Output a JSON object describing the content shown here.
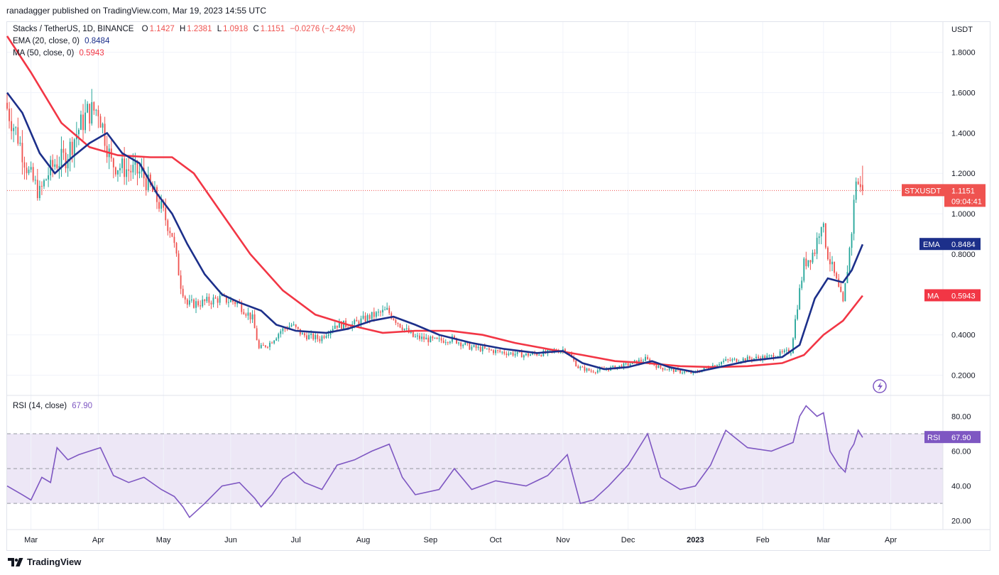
{
  "publisher_line": "ranadagger published on TradingView.com, Mar 19, 2023 14:55 UTC",
  "legend": {
    "symbol": "Stacks / TetherUS, 1D, BINANCE",
    "o_label": "O",
    "o": "1.1427",
    "h_label": "H",
    "h": "1.2381",
    "l_label": "L",
    "l": "1.0918",
    "c_label": "C",
    "c": "1.1151",
    "change": "−0.0276 (−2.42%)",
    "ema_label": "EMA (20, close, 0)",
    "ema_value": "0.8484",
    "ma_label": "MA (50, close, 0)",
    "ma_value": "0.5943",
    "rsi_label": "RSI (14, close)",
    "rsi_value": "67.90"
  },
  "axis": {
    "currency": "USDT",
    "price_ticks": [
      "1.8000",
      "1.6000",
      "1.4000",
      "1.2000",
      "1.0000",
      "0.8000",
      "0.4000",
      "0.2000"
    ],
    "rsi_ticks": [
      "80.00",
      "60.00",
      "40.00",
      "20.00"
    ],
    "months": [
      "Mar",
      "Apr",
      "May",
      "Jun",
      "Jul",
      "Aug",
      "Sep",
      "Oct",
      "Nov",
      "Dec",
      "2023",
      "Feb",
      "Mar",
      "Apr"
    ]
  },
  "price_tag": {
    "symbol": "STXUSDT",
    "price": "1.1151",
    "countdown": "09:04:41"
  },
  "ema_tag": {
    "label": "EMA",
    "value": "0.8484"
  },
  "ma_tag": {
    "label": "MA",
    "value": "0.5943"
  },
  "rsi_tag": {
    "label": "RSI",
    "value": "67.90"
  },
  "brand": "TradingView",
  "colors": {
    "up": "#26a69a",
    "down": "#ef5350",
    "ema": "#1c2f8a",
    "ma": "#f23645",
    "rsi": "#7e57c2",
    "rsi_band": "#ede7f6"
  },
  "chart_data": {
    "type": "candlestick",
    "title": "Stacks / TetherUS, 1D, BINANCE",
    "y_unit": "USDT",
    "ylim": [
      0.1,
      1.95
    ],
    "x_range": [
      "2022-02-18",
      "2023-04-25"
    ],
    "series": [
      {
        "name": "EMA (20, close, 0)",
        "last": 0.8484,
        "points": [
          [
            "2022-02-18",
            1.6
          ],
          [
            "2022-02-25",
            1.5
          ],
          [
            "2022-03-05",
            1.3
          ],
          [
            "2022-03-12",
            1.2
          ],
          [
            "2022-03-20",
            1.28
          ],
          [
            "2022-03-28",
            1.35
          ],
          [
            "2022-04-05",
            1.4
          ],
          [
            "2022-04-12",
            1.3
          ],
          [
            "2022-04-20",
            1.25
          ],
          [
            "2022-04-28",
            1.1
          ],
          [
            "2022-05-05",
            1.0
          ],
          [
            "2022-05-12",
            0.85
          ],
          [
            "2022-05-20",
            0.7
          ],
          [
            "2022-05-28",
            0.6
          ],
          [
            "2022-06-05",
            0.56
          ],
          [
            "2022-06-15",
            0.52
          ],
          [
            "2022-06-22",
            0.45
          ],
          [
            "2022-07-01",
            0.42
          ],
          [
            "2022-07-15",
            0.41
          ],
          [
            "2022-07-25",
            0.43
          ],
          [
            "2022-08-05",
            0.47
          ],
          [
            "2022-08-15",
            0.49
          ],
          [
            "2022-08-25",
            0.45
          ],
          [
            "2022-09-05",
            0.4
          ],
          [
            "2022-09-20",
            0.36
          ],
          [
            "2022-10-05",
            0.33
          ],
          [
            "2022-10-20",
            0.31
          ],
          [
            "2022-11-01",
            0.32
          ],
          [
            "2022-11-10",
            0.26
          ],
          [
            "2022-11-20",
            0.23
          ],
          [
            "2022-12-01",
            0.24
          ],
          [
            "2022-12-12",
            0.27
          ],
          [
            "2022-12-20",
            0.24
          ],
          [
            "2023-01-01",
            0.215
          ],
          [
            "2023-01-12",
            0.24
          ],
          [
            "2023-01-25",
            0.27
          ],
          [
            "2023-02-10",
            0.29
          ],
          [
            "2023-02-18",
            0.35
          ],
          [
            "2023-02-25",
            0.58
          ],
          [
            "2023-03-03",
            0.68
          ],
          [
            "2023-03-10",
            0.66
          ],
          [
            "2023-03-14",
            0.72
          ],
          [
            "2023-03-19",
            0.8484
          ]
        ]
      },
      {
        "name": "MA (50, close, 0)",
        "last": 0.5943,
        "points": [
          [
            "2022-02-18",
            1.88
          ],
          [
            "2022-03-01",
            1.7
          ],
          [
            "2022-03-15",
            1.45
          ],
          [
            "2022-03-28",
            1.33
          ],
          [
            "2022-04-10",
            1.29
          ],
          [
            "2022-04-25",
            1.28
          ],
          [
            "2022-05-05",
            1.28
          ],
          [
            "2022-05-15",
            1.2
          ],
          [
            "2022-05-28",
            1.0
          ],
          [
            "2022-06-10",
            0.8
          ],
          [
            "2022-06-25",
            0.62
          ],
          [
            "2022-07-10",
            0.5
          ],
          [
            "2022-07-25",
            0.45
          ],
          [
            "2022-08-10",
            0.41
          ],
          [
            "2022-08-25",
            0.42
          ],
          [
            "2022-09-10",
            0.42
          ],
          [
            "2022-09-25",
            0.4
          ],
          [
            "2022-10-10",
            0.36
          ],
          [
            "2022-10-25",
            0.33
          ],
          [
            "2022-11-10",
            0.3
          ],
          [
            "2022-11-25",
            0.27
          ],
          [
            "2022-12-10",
            0.26
          ],
          [
            "2022-12-25",
            0.245
          ],
          [
            "2023-01-10",
            0.24
          ],
          [
            "2023-01-25",
            0.245
          ],
          [
            "2023-02-10",
            0.26
          ],
          [
            "2023-02-20",
            0.3
          ],
          [
            "2023-03-01",
            0.4
          ],
          [
            "2023-03-10",
            0.47
          ],
          [
            "2023-03-19",
            0.5943
          ]
        ]
      }
    ],
    "price_path": [
      [
        "2022-02-18",
        1.55
      ],
      [
        "2022-02-24",
        1.38
      ],
      [
        "2022-03-01",
        1.2
      ],
      [
        "2022-03-06",
        1.1
      ],
      [
        "2022-03-10",
        1.2
      ],
      [
        "2022-03-13",
        1.25
      ],
      [
        "2022-03-18",
        1.28
      ],
      [
        "2022-03-23",
        1.4
      ],
      [
        "2022-03-28",
        1.5
      ],
      [
        "2022-04-02",
        1.52
      ],
      [
        "2022-04-08",
        1.25
      ],
      [
        "2022-04-15",
        1.22
      ],
      [
        "2022-04-22",
        1.2
      ],
      [
        "2022-04-30",
        1.05
      ],
      [
        "2022-05-06",
        0.9
      ],
      [
        "2022-05-10",
        0.65
      ],
      [
        "2022-05-13",
        0.55
      ],
      [
        "2022-05-20",
        0.56
      ],
      [
        "2022-05-28",
        0.58
      ],
      [
        "2022-06-05",
        0.56
      ],
      [
        "2022-06-12",
        0.48
      ],
      [
        "2022-06-15",
        0.33
      ],
      [
        "2022-06-20",
        0.36
      ],
      [
        "2022-06-25",
        0.42
      ],
      [
        "2022-06-30",
        0.45
      ],
      [
        "2022-07-05",
        0.4
      ],
      [
        "2022-07-13",
        0.38
      ],
      [
        "2022-07-20",
        0.45
      ],
      [
        "2022-07-28",
        0.45
      ],
      [
        "2022-08-05",
        0.49
      ],
      [
        "2022-08-13",
        0.52
      ],
      [
        "2022-08-19",
        0.45
      ],
      [
        "2022-08-25",
        0.39
      ],
      [
        "2022-09-05",
        0.37
      ],
      [
        "2022-09-12",
        0.38
      ],
      [
        "2022-09-20",
        0.34
      ],
      [
        "2022-10-01",
        0.32
      ],
      [
        "2022-10-15",
        0.3
      ],
      [
        "2022-10-25",
        0.31
      ],
      [
        "2022-11-03",
        0.33
      ],
      [
        "2022-11-09",
        0.24
      ],
      [
        "2022-11-15",
        0.22
      ],
      [
        "2022-11-22",
        0.23
      ],
      [
        "2022-12-01",
        0.25
      ],
      [
        "2022-12-10",
        0.28
      ],
      [
        "2022-12-16",
        0.24
      ],
      [
        "2022-12-25",
        0.22
      ],
      [
        "2023-01-01",
        0.21
      ],
      [
        "2023-01-08",
        0.24
      ],
      [
        "2023-01-15",
        0.27
      ],
      [
        "2023-01-25",
        0.28
      ],
      [
        "2023-02-05",
        0.29
      ],
      [
        "2023-02-15",
        0.32
      ],
      [
        "2023-02-18",
        0.55
      ],
      [
        "2023-02-21",
        0.75
      ],
      [
        "2023-02-26",
        0.82
      ],
      [
        "2023-03-01",
        0.97
      ],
      [
        "2023-03-04",
        0.8
      ],
      [
        "2023-03-08",
        0.66
      ],
      [
        "2023-03-11",
        0.55
      ],
      [
        "2023-03-13",
        0.73
      ],
      [
        "2023-03-15",
        0.92
      ],
      [
        "2023-03-17",
        1.18
      ],
      [
        "2023-03-19",
        1.1151
      ]
    ],
    "last_bar": {
      "date": "2023-03-19",
      "open": 1.1427,
      "high": 1.2381,
      "low": 1.0918,
      "close": 1.1151,
      "change": -0.0276,
      "change_pct": -2.42
    },
    "rsi": {
      "name": "RSI (14, close)",
      "ylim": [
        15,
        92
      ],
      "band": [
        30,
        70
      ],
      "midline": 50,
      "last": 67.9,
      "points": [
        [
          "2022-02-18",
          40
        ],
        [
          "2022-02-25",
          35
        ],
        [
          "2022-03-01",
          32
        ],
        [
          "2022-03-06",
          45
        ],
        [
          "2022-03-10",
          42
        ],
        [
          "2022-03-13",
          62
        ],
        [
          "2022-03-18",
          55
        ],
        [
          "2022-03-23",
          58
        ],
        [
          "2022-03-28",
          60
        ],
        [
          "2022-04-02",
          62
        ],
        [
          "2022-04-08",
          46
        ],
        [
          "2022-04-15",
          42
        ],
        [
          "2022-04-22",
          45
        ],
        [
          "2022-04-30",
          38
        ],
        [
          "2022-05-06",
          34
        ],
        [
          "2022-05-10",
          28
        ],
        [
          "2022-05-13",
          22
        ],
        [
          "2022-05-20",
          30
        ],
        [
          "2022-05-28",
          40
        ],
        [
          "2022-06-05",
          42
        ],
        [
          "2022-06-12",
          33
        ],
        [
          "2022-06-15",
          28
        ],
        [
          "2022-06-20",
          35
        ],
        [
          "2022-06-25",
          44
        ],
        [
          "2022-06-30",
          48
        ],
        [
          "2022-07-05",
          42
        ],
        [
          "2022-07-13",
          38
        ],
        [
          "2022-07-20",
          52
        ],
        [
          "2022-07-28",
          55
        ],
        [
          "2022-08-05",
          60
        ],
        [
          "2022-08-13",
          64
        ],
        [
          "2022-08-19",
          45
        ],
        [
          "2022-08-25",
          35
        ],
        [
          "2022-09-05",
          38
        ],
        [
          "2022-09-12",
          50
        ],
        [
          "2022-09-20",
          38
        ],
        [
          "2022-10-01",
          43
        ],
        [
          "2022-10-15",
          40
        ],
        [
          "2022-10-25",
          46
        ],
        [
          "2022-11-03",
          58
        ],
        [
          "2022-11-09",
          30
        ],
        [
          "2022-11-15",
          32
        ],
        [
          "2022-11-22",
          40
        ],
        [
          "2022-12-01",
          52
        ],
        [
          "2022-12-10",
          70
        ],
        [
          "2022-12-16",
          45
        ],
        [
          "2022-12-25",
          38
        ],
        [
          "2023-01-01",
          40
        ],
        [
          "2023-01-08",
          52
        ],
        [
          "2023-01-15",
          72
        ],
        [
          "2023-01-25",
          62
        ],
        [
          "2023-02-05",
          60
        ],
        [
          "2023-02-15",
          65
        ],
        [
          "2023-02-18",
          80
        ],
        [
          "2023-02-21",
          86
        ],
        [
          "2023-02-26",
          80
        ],
        [
          "2023-03-01",
          82
        ],
        [
          "2023-03-04",
          60
        ],
        [
          "2023-03-08",
          52
        ],
        [
          "2023-03-11",
          48
        ],
        [
          "2023-03-13",
          60
        ],
        [
          "2023-03-15",
          64
        ],
        [
          "2023-03-17",
          72
        ],
        [
          "2023-03-19",
          67.9
        ]
      ]
    }
  }
}
